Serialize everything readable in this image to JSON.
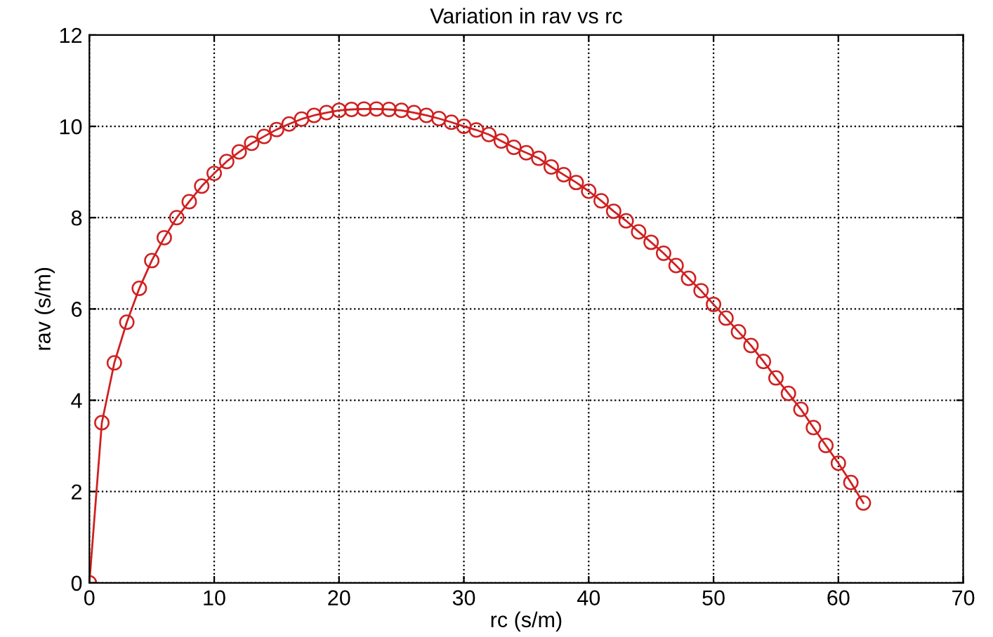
{
  "chart_data": {
    "type": "line",
    "title": "Variation in rav vs rc",
    "xlabel": "rc (s/m)",
    "ylabel": "rav (s/m)",
    "x": [
      0,
      1,
      2,
      3,
      4,
      5,
      6,
      7,
      8,
      9,
      10,
      11,
      12,
      13,
      14,
      15,
      16,
      17,
      18,
      19,
      20,
      21,
      22,
      23,
      24,
      25,
      26,
      27,
      28,
      29,
      30,
      31,
      32,
      33,
      34,
      35,
      36,
      37,
      38,
      39,
      40,
      41,
      42,
      43,
      44,
      45,
      46,
      47,
      48,
      49,
      50,
      51,
      52,
      53,
      54,
      55,
      56,
      57,
      58,
      59,
      60,
      61,
      62
    ],
    "series": [
      {
        "color": "#d02020",
        "values": [
          0,
          3.51,
          4.82,
          5.71,
          6.45,
          7.06,
          7.56,
          8.0,
          8.35,
          8.69,
          8.97,
          9.23,
          9.44,
          9.63,
          9.78,
          9.93,
          10.05,
          10.16,
          10.24,
          10.3,
          10.35,
          10.37,
          10.38,
          10.38,
          10.37,
          10.35,
          10.3,
          10.24,
          10.17,
          10.09,
          10.0,
          9.92,
          9.82,
          9.68,
          9.54,
          9.42,
          9.3,
          9.11,
          8.94,
          8.77,
          8.58,
          8.37,
          8.14,
          7.93,
          7.69,
          7.46,
          7.22,
          6.95,
          6.67,
          6.4,
          6.1,
          5.8,
          5.5,
          5.2,
          4.85,
          4.49,
          4.15,
          3.8,
          3.4,
          3.01,
          2.62,
          2.2,
          1.75
        ]
      }
    ],
    "xlim": [
      0,
      70
    ],
    "xticks": [
      0,
      10,
      20,
      30,
      40,
      50,
      60,
      70
    ],
    "ylim": [
      0,
      12
    ],
    "yticks": [
      0,
      2,
      4,
      6,
      8,
      10,
      12
    ],
    "grid": true,
    "marker": "circle",
    "line_style": "solid",
    "legend": false
  }
}
